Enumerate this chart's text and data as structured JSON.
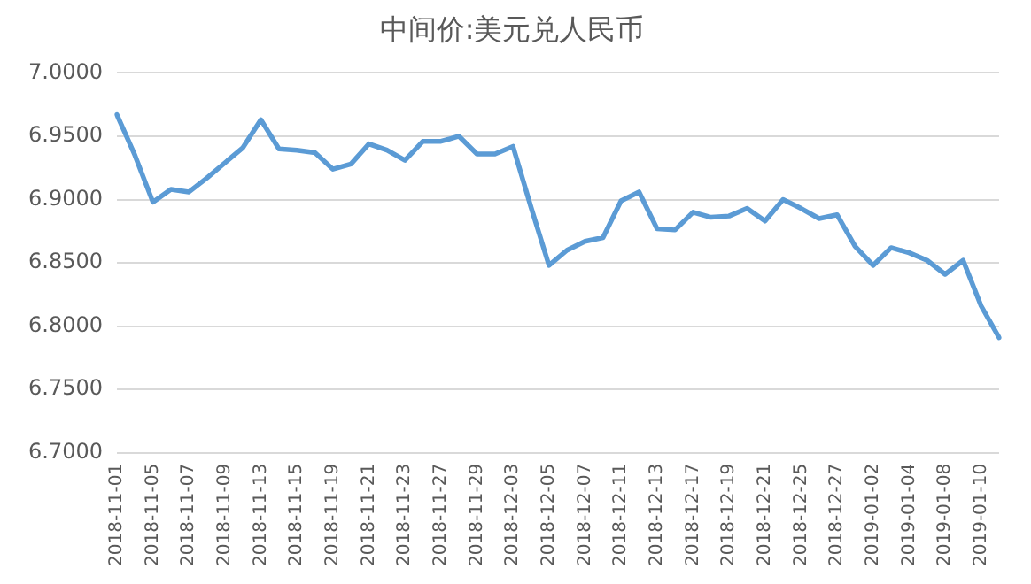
{
  "chart_data": {
    "type": "line",
    "title": "中间价:美元兑人民币",
    "categories": [
      "2018-11-01",
      null,
      "2018-11-05",
      null,
      "2018-11-07",
      null,
      "2018-11-09",
      null,
      "2018-11-13",
      null,
      "2018-11-15",
      null,
      "2018-11-19",
      null,
      "2018-11-21",
      null,
      "2018-11-23",
      null,
      "2018-11-27",
      null,
      "2018-11-29",
      null,
      "2018-12-03",
      null,
      "2018-12-05",
      null,
      "2018-12-07",
      null,
      "2018-12-11",
      null,
      "2018-12-13",
      null,
      "2018-12-17",
      null,
      "2018-12-19",
      null,
      "2018-12-21",
      null,
      "2018-12-25",
      null,
      "2018-12-27",
      null,
      "2019-01-02",
      null,
      "2019-01-04",
      null,
      "2019-01-08",
      null,
      "2019-01-10",
      null
    ],
    "series": [
      {
        "color": "#5b9bd5",
        "values": [
          6.967,
          6.935,
          6.898,
          6.908,
          6.906,
          6.917,
          6.929,
          6.941,
          6.963,
          6.94,
          6.939,
          6.937,
          6.924,
          6.928,
          6.944,
          6.939,
          6.931,
          6.946,
          6.946,
          6.95,
          6.936,
          6.936,
          6.942,
          6.894,
          6.848,
          6.86,
          6.867,
          6.87,
          6.899,
          6.906,
          6.877,
          6.876,
          6.89,
          6.886,
          6.887,
          6.893,
          6.883,
          6.9,
          6.893,
          6.885,
          6.888,
          6.863,
          6.848,
          6.862,
          6.858,
          6.852,
          6.841,
          6.852,
          6.816,
          6.791
        ]
      }
    ],
    "ylim": [
      6.7,
      7.0
    ],
    "yticks": [
      {
        "value": 6.7,
        "label": "6.7000"
      },
      {
        "value": 6.75,
        "label": "6.7500"
      },
      {
        "value": 6.8,
        "label": "6.8000"
      },
      {
        "value": 6.85,
        "label": "6.8500"
      },
      {
        "value": 6.9,
        "label": "6.9000"
      },
      {
        "value": 6.95,
        "label": "6.9500"
      },
      {
        "value": 7.0,
        "label": "7.0000"
      }
    ],
    "grid": "y",
    "legend": false,
    "marker": "none",
    "line_style": "solid"
  }
}
